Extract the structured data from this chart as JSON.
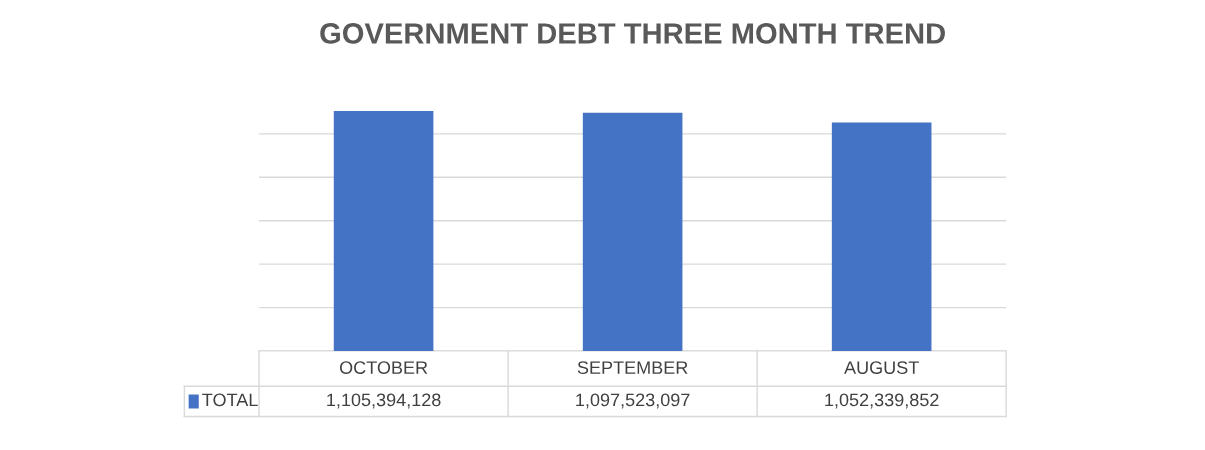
{
  "chart_data": {
    "type": "bar",
    "title": "GOVERNMENT DEBT THREE MONTH TREND",
    "categories": [
      "OCTOBER",
      "SEPTEMBER",
      "AUGUST"
    ],
    "series": [
      {
        "name": "TOTAL",
        "color": "#4472c4",
        "values": [
          1105394128,
          1097523097,
          1052339852
        ],
        "value_labels": [
          "1,105,394,128",
          "1,097,523,097",
          "1,052,339,852"
        ]
      }
    ],
    "grid": "y",
    "legend": "bottom left",
    "tick_labels": "x"
  }
}
